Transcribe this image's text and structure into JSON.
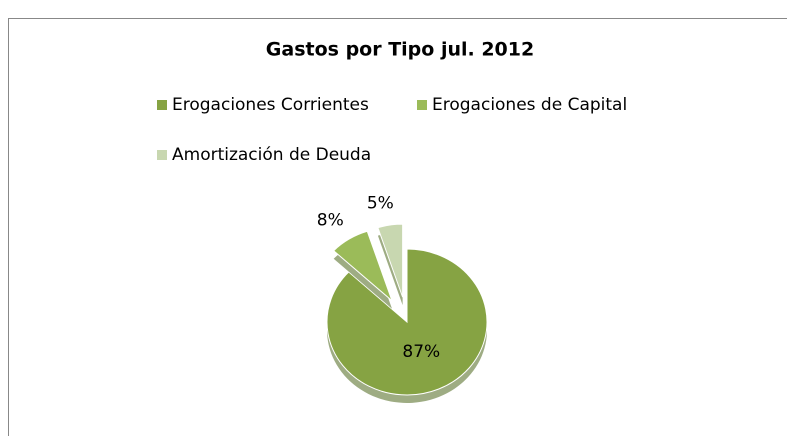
{
  "chart_data": {
    "type": "pie",
    "title": "Gastos por Tipo  jul. 2012",
    "categories": [
      "Erogaciones Corrientes",
      "Erogaciones de Capital",
      "Amortización de Deuda"
    ],
    "values": [
      87,
      8,
      5
    ],
    "value_labels": [
      "87%",
      "8%",
      "5%"
    ],
    "colors": [
      "#86a343",
      "#9bbb59",
      "#c8d7b0"
    ],
    "legend": "top"
  }
}
